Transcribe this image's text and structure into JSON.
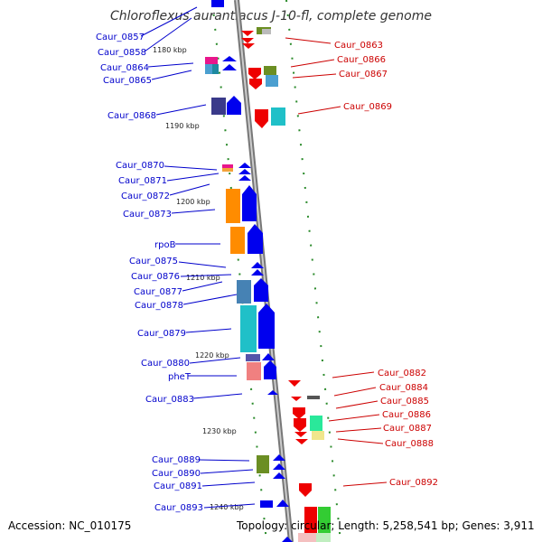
{
  "title": "Chloroflexus aurantiacus J-10-fl, complete genome",
  "footer": {
    "accession": "Accession: NC_010175",
    "stats": "Topology: circular; Length: 5,258,541 bp; Genes: 3,911"
  },
  "kbp_ticks": [
    "1180 kbp",
    "1190 kbp",
    "1200 kbp",
    "1210 kbp",
    "1220 kbp",
    "1230 kbp",
    "1240 kbp"
  ],
  "genes_left": [
    "Caur_0857",
    "Caur_0858",
    "Caur_0864",
    "Caur_0865",
    "Caur_0868",
    "Caur_0870",
    "Caur_0871",
    "Caur_0872",
    "Caur_0873",
    "rpoB",
    "Caur_0875",
    "Caur_0876",
    "Caur_0877",
    "Caur_0878",
    "Caur_0879",
    "Caur_0880",
    "pheT",
    "Caur_0883",
    "Caur_0889",
    "Caur_0890",
    "Caur_0891",
    "Caur_0893"
  ],
  "genes_right": [
    "Caur_0863",
    "Caur_0866",
    "Caur_0867",
    "Caur_0869",
    "Caur_0882",
    "Caur_0884",
    "Caur_0885",
    "Caur_0886",
    "Caur_0887",
    "Caur_0888",
    "Caur_0892"
  ],
  "colors": {
    "forward_label": "#0000cc",
    "reverse_label": "#cc0000",
    "forward_gene": "#0000ee",
    "reverse_gene": "#ee0000",
    "backbone": "#999999",
    "ticks": "#2a8a2a"
  }
}
